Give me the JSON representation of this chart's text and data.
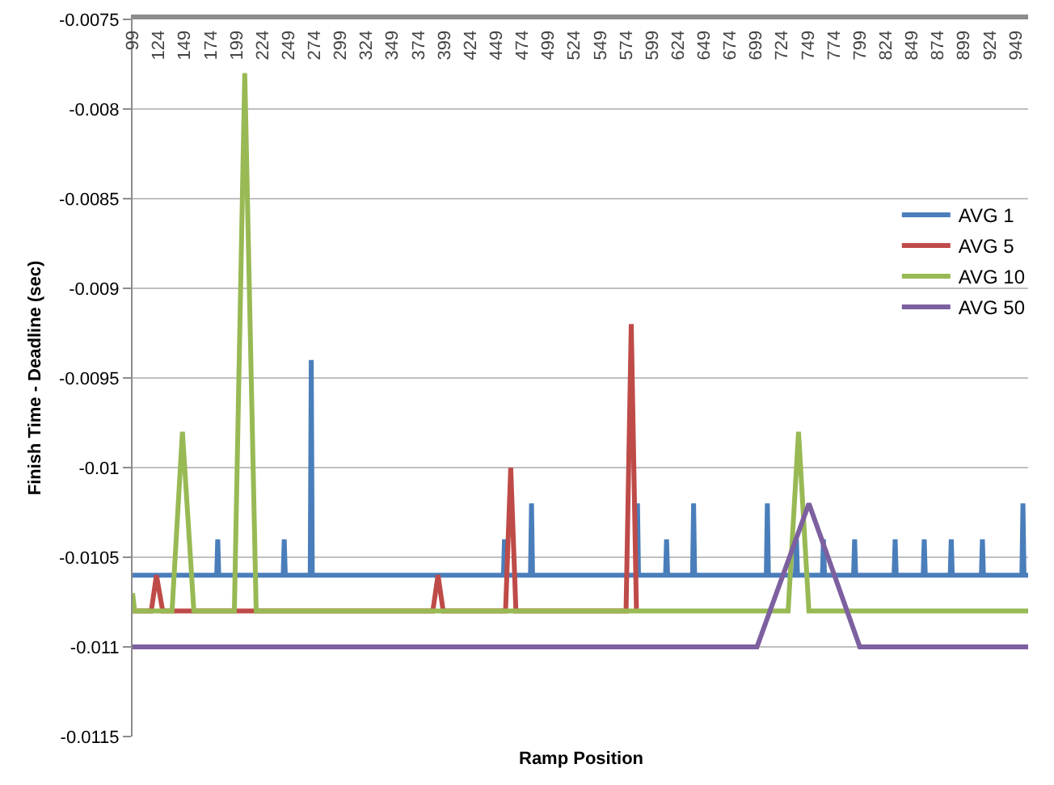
{
  "chart_data": {
    "type": "line",
    "xlabel": "Ramp Position",
    "ylabel": "Finish Time - Deadline (sec)",
    "xlim": [
      99,
      961
    ],
    "xticks": [
      99,
      124,
      149,
      174,
      199,
      224,
      249,
      274,
      299,
      324,
      349,
      374,
      399,
      424,
      449,
      474,
      499,
      524,
      549,
      574,
      599,
      624,
      649,
      674,
      699,
      724,
      749,
      774,
      799,
      824,
      849,
      874,
      899,
      924,
      949
    ],
    "ylim": [
      -0.0115,
      -0.0075
    ],
    "yticks": [
      -0.0115,
      -0.011,
      -0.0105,
      -0.01,
      -0.0095,
      -0.009,
      -0.0085,
      -0.008,
      -0.0075
    ],
    "grid": "y",
    "legend": "right",
    "line_style": "solid",
    "marker": "none",
    "series": [
      {
        "name": "AVG 1",
        "color": "#4a7ebb",
        "x": [
          99,
          180,
          181,
          182,
          244,
          245,
          246,
          270,
          271,
          272,
          456,
          457,
          458,
          482,
          483,
          484,
          584,
          585,
          586,
          612,
          613,
          614,
          638,
          639,
          640,
          709,
          710,
          711,
          737,
          738,
          739,
          763,
          764,
          765,
          793,
          794,
          795,
          832,
          833,
          834,
          860,
          861,
          862,
          886,
          887,
          888,
          916,
          917,
          918,
          955,
          956,
          957,
          961
        ],
        "values": [
          -0.0106,
          -0.0106,
          -0.0104,
          -0.0106,
          -0.0106,
          -0.0104,
          -0.0106,
          -0.0106,
          -0.0094,
          -0.0106,
          -0.0106,
          -0.0104,
          -0.0106,
          -0.0106,
          -0.0102,
          -0.0106,
          -0.0106,
          -0.0102,
          -0.0106,
          -0.0106,
          -0.0104,
          -0.0106,
          -0.0106,
          -0.0102,
          -0.0106,
          -0.0106,
          -0.0102,
          -0.0106,
          -0.0106,
          -0.0104,
          -0.0106,
          -0.0106,
          -0.0104,
          -0.0106,
          -0.0106,
          -0.0104,
          -0.0106,
          -0.0106,
          -0.0104,
          -0.0106,
          -0.0106,
          -0.0104,
          -0.0106,
          -0.0106,
          -0.0104,
          -0.0106,
          -0.0106,
          -0.0104,
          -0.0106,
          -0.0106,
          -0.0102,
          -0.0106,
          -0.0106
        ]
      },
      {
        "name": "AVG 5",
        "color": "#be4b48",
        "x": [
          99,
          117,
          122,
          128,
          388,
          393,
          398,
          458,
          463,
          468,
          574,
          579,
          584
        ],
        "values": [
          -0.0108,
          -0.0108,
          -0.0106,
          -0.0108,
          -0.0108,
          -0.0106,
          -0.0108,
          -0.0108,
          -0.01,
          -0.0108,
          -0.0108,
          -0.0092,
          -0.0108
        ]
      },
      {
        "name": "AVG 10",
        "color": "#98b954",
        "x": [
          99,
          101,
          137,
          147,
          158,
          197,
          207,
          218,
          730,
          740,
          750,
          961
        ],
        "values": [
          -0.0107,
          -0.0108,
          -0.0108,
          -0.0098,
          -0.0108,
          -0.0108,
          -0.0078,
          -0.0108,
          -0.0108,
          -0.0098,
          -0.0108,
          -0.0108
        ]
      },
      {
        "name": "AVG 50",
        "color": "#7d60a0",
        "x": [
          99,
          700,
          750,
          799,
          961
        ],
        "values": [
          -0.011,
          -0.011,
          -0.0102,
          -0.011,
          -0.011
        ]
      }
    ]
  }
}
